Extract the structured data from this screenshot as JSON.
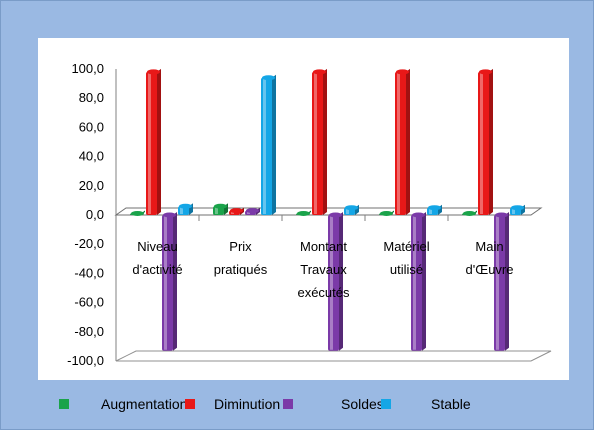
{
  "colors": {
    "frame_background": "#9ab9e3",
    "plot_background": "#ffffff",
    "series": [
      "#1aa34a",
      "#e81818",
      "#7b3aa8",
      "#14a6e6"
    ]
  },
  "chart_data": {
    "type": "bar",
    "style": "3d-clustered-column",
    "title": "",
    "xlabel": "",
    "ylabel": "",
    "ylim": [
      -100,
      100
    ],
    "yticks": [
      "100,0",
      "80,0",
      "60,0",
      "40,0",
      "20,0",
      "0,0",
      "-20,0",
      "-40,0",
      "-60,0",
      "-80,0",
      "-100,0"
    ],
    "categories": [
      [
        "Niveau",
        "d'activité"
      ],
      [
        "Prix",
        "pratiqués"
      ],
      [
        "Montant",
        "Travaux",
        "exécutés"
      ],
      [
        "Matériel",
        "utilisé"
      ],
      [
        "Main",
        "d'Œuvre"
      ]
    ],
    "series": [
      {
        "name": "Augmentation",
        "values": [
          1,
          6,
          1,
          1,
          1
        ]
      },
      {
        "name": "Diminution",
        "values": [
          98,
          3,
          98,
          98,
          98
        ]
      },
      {
        "name": "Soldes",
        "values": [
          -93,
          3,
          -93,
          -93,
          -93
        ]
      },
      {
        "name": "Stable",
        "values": [
          6,
          94,
          5,
          5,
          5
        ]
      }
    ],
    "legend_position": "bottom",
    "grid": false
  }
}
